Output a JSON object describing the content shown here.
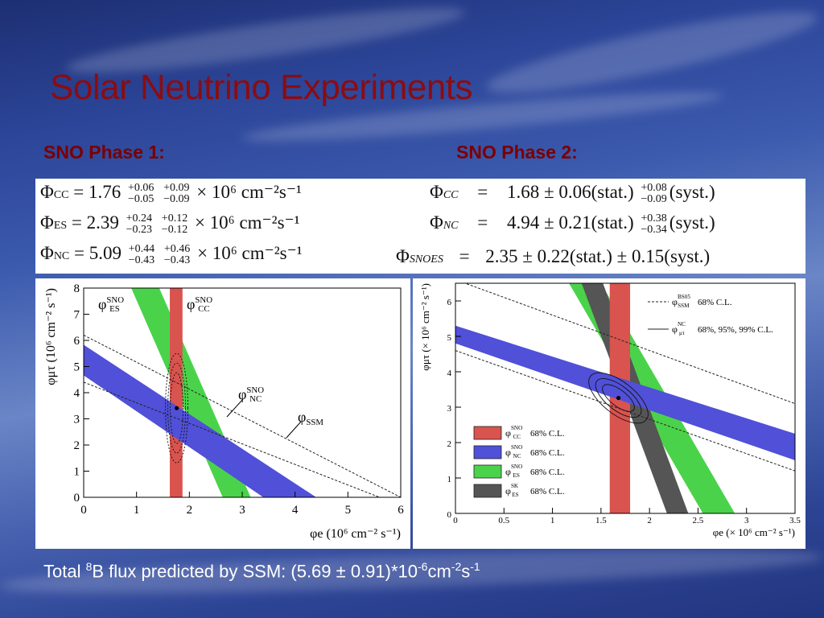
{
  "slide": {
    "title": "Solar Neutrino Experiments",
    "phase1_heading": "SNO Phase 1:",
    "phase2_heading": "SNO Phase 2:",
    "footer": {
      "prefix": "Total ",
      "sup1": "8",
      "mid": "B flux predicted by SSM: (5.69 ± 0.91)*10",
      "sup2": "-6",
      "unit1": "cm",
      "sup3": "-2",
      "unit2": "s",
      "sup4": "-1"
    }
  },
  "phase1_formulas": [
    {
      "sym": "Φ",
      "sub": "CC",
      "eq": "= 1.76",
      "up1": "+0.06",
      "lo1": "−0.05",
      "up2": "+0.09",
      "lo2": "−0.09",
      "tail": "× 10⁶ cm⁻²s⁻¹"
    },
    {
      "sym": "Φ",
      "sub": "ES",
      "eq": "= 2.39",
      "up1": "+0.24",
      "lo1": "−0.23",
      "up2": "+0.12",
      "lo2": "−0.12",
      "tail": "× 10⁶ cm⁻²s⁻¹"
    },
    {
      "sym": "Φ",
      "sub": "NC",
      "eq": "= 5.09",
      "up1": "+0.44",
      "lo1": "−0.43",
      "up2": "+0.46",
      "lo2": "−0.43",
      "tail": "× 10⁶ cm⁻²s⁻¹"
    }
  ],
  "phase2_formulas": [
    {
      "sym": "Φ",
      "sub": "CC",
      "eq": "=",
      "val": "1.68 ± 0.06(stat.)",
      "up": "+0.08",
      "lo": "−0.09",
      "tail": "(syst.)"
    },
    {
      "sym": "Φ",
      "sub": "NC",
      "eq": "=",
      "val": "4.94 ± 0.21(stat.)",
      "up": "+0.38",
      "lo": "−0.34",
      "tail": "(syst.)"
    },
    {
      "sym": "Φ",
      "sub": "SNOES",
      "eq": "=",
      "val": "2.35 ± 0.22(stat.) ± 0.15(syst.)",
      "up": "",
      "lo": "",
      "tail": ""
    }
  ],
  "chart_data": [
    {
      "type": "band",
      "xlim": [
        0,
        6
      ],
      "ylim": [
        0,
        8
      ],
      "xticks": [
        0,
        1,
        2,
        3,
        4,
        5,
        6
      ],
      "yticks": [
        0,
        1,
        2,
        3,
        4,
        5,
        6,
        7,
        8
      ],
      "xlabel": "φe (10⁶ cm⁻² s⁻¹)",
      "ylabel": "φμτ (10⁶ cm⁻² s⁻¹)",
      "bands": [
        {
          "name": "φES SNO",
          "color": "#4ad34a",
          "lines": [
            [
              0.9,
              8,
              2.63,
              0
            ],
            [
              1.43,
              8,
              3.16,
              0
            ]
          ]
        },
        {
          "name": "φCC SNO",
          "color": "#d9534f",
          "lines": [
            [
              1.63,
              8,
              1.63,
              0
            ],
            [
              1.87,
              8,
              1.87,
              0
            ]
          ]
        },
        {
          "name": "φNC SNO",
          "color": "#5050d8",
          "lines": [
            [
              0,
              5.83,
              4.4,
              0
            ],
            [
              0,
              4.66,
              3.4,
              0
            ]
          ]
        }
      ],
      "ssm_lines": [
        [
          0,
          6.2,
          6,
          0
        ],
        [
          0,
          4.4,
          5.6,
          0
        ]
      ],
      "best_fit": [
        1.76,
        3.41
      ],
      "labels": {
        "es": {
          "phi": "φ",
          "sup": "SNO",
          "sub": "ES"
        },
        "cc": {
          "phi": "φ",
          "sup": "SNO",
          "sub": "CC"
        },
        "nc": {
          "phi": "φ",
          "sup": "SNO",
          "sub": "NC"
        },
        "ssm": {
          "phi": "φ",
          "sub": "SSM"
        }
      }
    },
    {
      "type": "band",
      "xlim": [
        0,
        3.5
      ],
      "ylim": [
        0,
        6.5
      ],
      "xticks": [
        0,
        0.5,
        1,
        1.5,
        2,
        2.5,
        3,
        3.5
      ],
      "xtick_labels": [
        "0",
        "0.5",
        "1",
        "1.5",
        "2",
        "2.5",
        "3",
        "3.5"
      ],
      "yticks": [
        0,
        1,
        2,
        3,
        4,
        5,
        6
      ],
      "xlabel": "φe (× 10⁶ cm⁻² s⁻¹)",
      "ylabel": "φμτ (× 10⁶ cm⁻² s⁻¹)",
      "bands": [
        {
          "name": "φES SNO",
          "color": "#4ad34a",
          "lines": [
            [
              1.17,
              6.5,
              2.55,
              0
            ],
            [
              1.5,
              6.5,
              2.88,
              0
            ]
          ]
        },
        {
          "name": "φES SK",
          "color": "#555555",
          "lines": [
            [
              1.3,
              6.5,
              2.18,
              0
            ],
            [
              1.52,
              6.5,
              2.4,
              0
            ]
          ]
        },
        {
          "name": "φCC SNO",
          "color": "#d9534f",
          "lines": [
            [
              1.59,
              6.5,
              1.59,
              0
            ],
            [
              1.8,
              6.5,
              1.8,
              0
            ]
          ]
        },
        {
          "name": "φNC SNO",
          "color": "#5050d8",
          "lines": [
            [
              0,
              5.3,
              3.5,
              2.25
            ],
            [
              0,
              4.8,
              3.5,
              1.5
            ]
          ]
        }
      ],
      "ssm_lines": [
        [
          0,
          6.6,
          3.5,
          3.1
        ],
        [
          0,
          4.6,
          3.5,
          1.2
        ]
      ],
      "best_fit": [
        1.68,
        3.26
      ],
      "legend_top": [
        {
          "style": "dashed",
          "phi": "φ",
          "sup": "BS05",
          "sub": "SSM",
          "text": "68% C.L."
        },
        {
          "style": "solid",
          "phi": "φ",
          "sup": "NC",
          "sub": "μτ",
          "text": "68%, 95%, 99% C.L."
        }
      ],
      "legend": [
        {
          "color": "#d9534f",
          "phi": "φ",
          "sup": "SNO",
          "sub": "CC",
          "text": "68% C.L."
        },
        {
          "color": "#5050d8",
          "phi": "φ",
          "sup": "SNO",
          "sub": "NC",
          "text": "68% C.L."
        },
        {
          "color": "#4ad34a",
          "phi": "φ",
          "sup": "SNO",
          "sub": "ES",
          "text": "68% C.L."
        },
        {
          "color": "#555555",
          "phi": "φ",
          "sup": "SK",
          "sub": "ES",
          "text": "68% C.L."
        }
      ]
    }
  ]
}
